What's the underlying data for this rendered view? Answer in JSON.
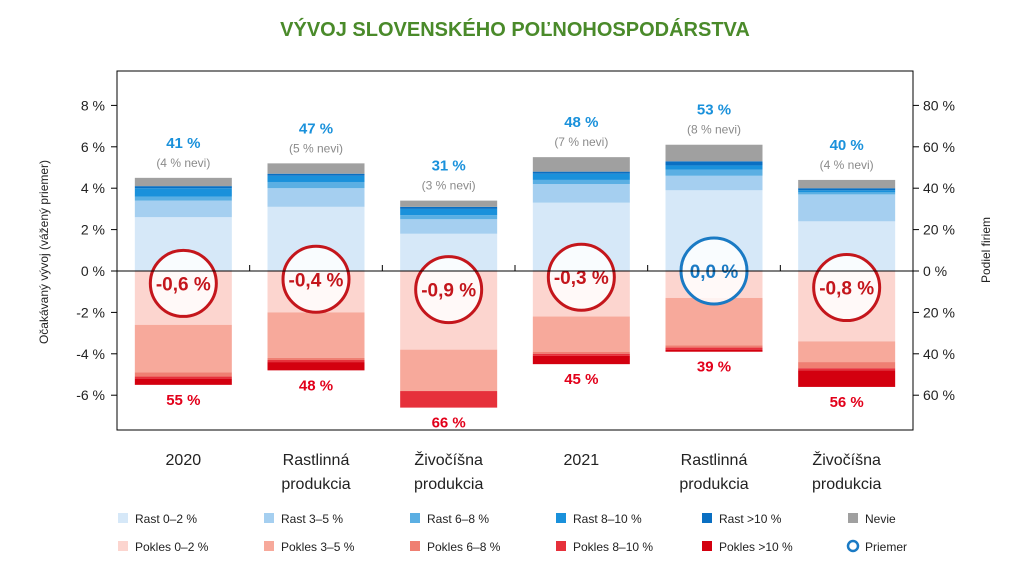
{
  "chart_data": {
    "type": "bar",
    "title": "VÝVOJ SLOVENSKÉHO POĽNOHOSPODÁRSTVA",
    "ylabel_left": "Očakávaný vývoj (vážený priemer)",
    "ylabel_right": "Podiel firiem",
    "left_axis": {
      "range": [
        -8,
        10
      ],
      "ticks": [
        -6,
        -4,
        -2,
        0,
        2,
        4,
        6,
        8
      ],
      "tick_labels": [
        "-6 %",
        "-4 %",
        "-2 %",
        "0 %",
        "2 %",
        "4 %",
        "6 %",
        "8 %"
      ]
    },
    "right_axis": {
      "range": [
        -80,
        100
      ],
      "ticks": [
        -60,
        -40,
        -20,
        0,
        20,
        40,
        60,
        80
      ],
      "tick_labels": [
        "60 %",
        "40 %",
        "20 %",
        "0 %",
        "20 %",
        "40 %",
        "60 %",
        "80 %"
      ]
    },
    "categories": [
      [
        "2020"
      ],
      [
        "Rastlinná",
        "produkcia"
      ],
      [
        "Živočíšna",
        "produkcia"
      ],
      [
        "2021"
      ],
      [
        "Rastlinná",
        "produkcia"
      ],
      [
        "Živočíšna",
        "produkcia"
      ]
    ],
    "positive_series": [
      {
        "name": "Rast 0–2 %",
        "color": "#d6e8f8",
        "values": [
          26,
          31,
          18,
          33,
          39,
          24
        ]
      },
      {
        "name": "Rast 3–5 %",
        "color": "#a5cff0",
        "values": [
          8,
          9,
          7,
          9,
          7,
          13
        ]
      },
      {
        "name": "Rast 6–8 %",
        "color": "#5bafe3",
        "values": [
          2,
          3,
          2,
          2,
          3,
          1
        ]
      },
      {
        "name": "Rast 8–10 %",
        "color": "#1a91db",
        "values": [
          4,
          3,
          3,
          3,
          2,
          1
        ]
      },
      {
        "name": "Rast >10 %",
        "color": "#0a6fc2",
        "values": [
          1,
          1,
          1,
          1,
          2,
          1
        ]
      },
      {
        "name": "Nevie",
        "color": "#a0a0a0",
        "values": [
          4,
          5,
          3,
          7,
          8,
          4
        ]
      }
    ],
    "negative_series": [
      {
        "name": "Pokles 0–2 %",
        "color": "#fcd5cf",
        "values": [
          26,
          20,
          38,
          22,
          13,
          34
        ]
      },
      {
        "name": "Pokles 3–5 %",
        "color": "#f7a99b",
        "values": [
          23,
          22,
          20,
          17,
          23,
          10
        ]
      },
      {
        "name": "Pokles 6–8 %",
        "color": "#ef7f72",
        "values": [
          2,
          1,
          0,
          1,
          1,
          3
        ]
      },
      {
        "name": "Pokles 8–10 %",
        "color": "#e6313b",
        "values": [
          1,
          1,
          8,
          1,
          1,
          1
        ]
      },
      {
        "name": "Pokles >10 %",
        "color": "#d3000f",
        "values": [
          3,
          4,
          0,
          4,
          1,
          8
        ]
      }
    ],
    "growth_labels": [
      "41 %",
      "47 %",
      "31 %",
      "48 %",
      "53 %",
      "40 %"
    ],
    "dont_know_labels": [
      "(4 % nevi)",
      "(5 % nevi)",
      "(3 % nevi)",
      "(7 % nevi)",
      "(8 % nevi)",
      "(4 % nevi)"
    ],
    "decline_labels": [
      "55 %",
      "48 %",
      "66 %",
      "45 %",
      "39 %",
      "56 %"
    ],
    "averages": [
      -0.6,
      -0.4,
      -0.9,
      -0.3,
      0.0,
      -0.8
    ],
    "average_labels": [
      "-0,6 %",
      "-0,4 %",
      "-0,9 %",
      "-0,3 %",
      "0,0 %",
      "-0,8 %"
    ],
    "legend": {
      "row1": [
        "Rast 0–2 %",
        "Rast 3–5 %",
        "Rast 6–8 %",
        "Rast 8–10 %",
        "Rast >10 %",
        "Nevie"
      ],
      "row2": [
        "Pokles 0–2 %",
        "Pokles 3–5 %",
        "Pokles 6–8 %",
        "Pokles 8–10 %",
        "Pokles >10 %",
        "Priemer"
      ],
      "colors_row1": [
        "#d6e8f8",
        "#a5cff0",
        "#5bafe3",
        "#1a91db",
        "#0a6fc2",
        "#a0a0a0"
      ],
      "colors_row2": [
        "#fcd5cf",
        "#f7a99b",
        "#ef7f72",
        "#e6313b",
        "#d3000f",
        "#ffffff"
      ],
      "placement": "bottom"
    },
    "colors": {
      "title": "#4a8a2a",
      "growth_label": "#1a91db",
      "decline_label": "#e2001a",
      "dont_know_label": "#8a8a8a",
      "circle_negative": "#c4161c",
      "circle_neutral": "#1a7ac4"
    }
  }
}
